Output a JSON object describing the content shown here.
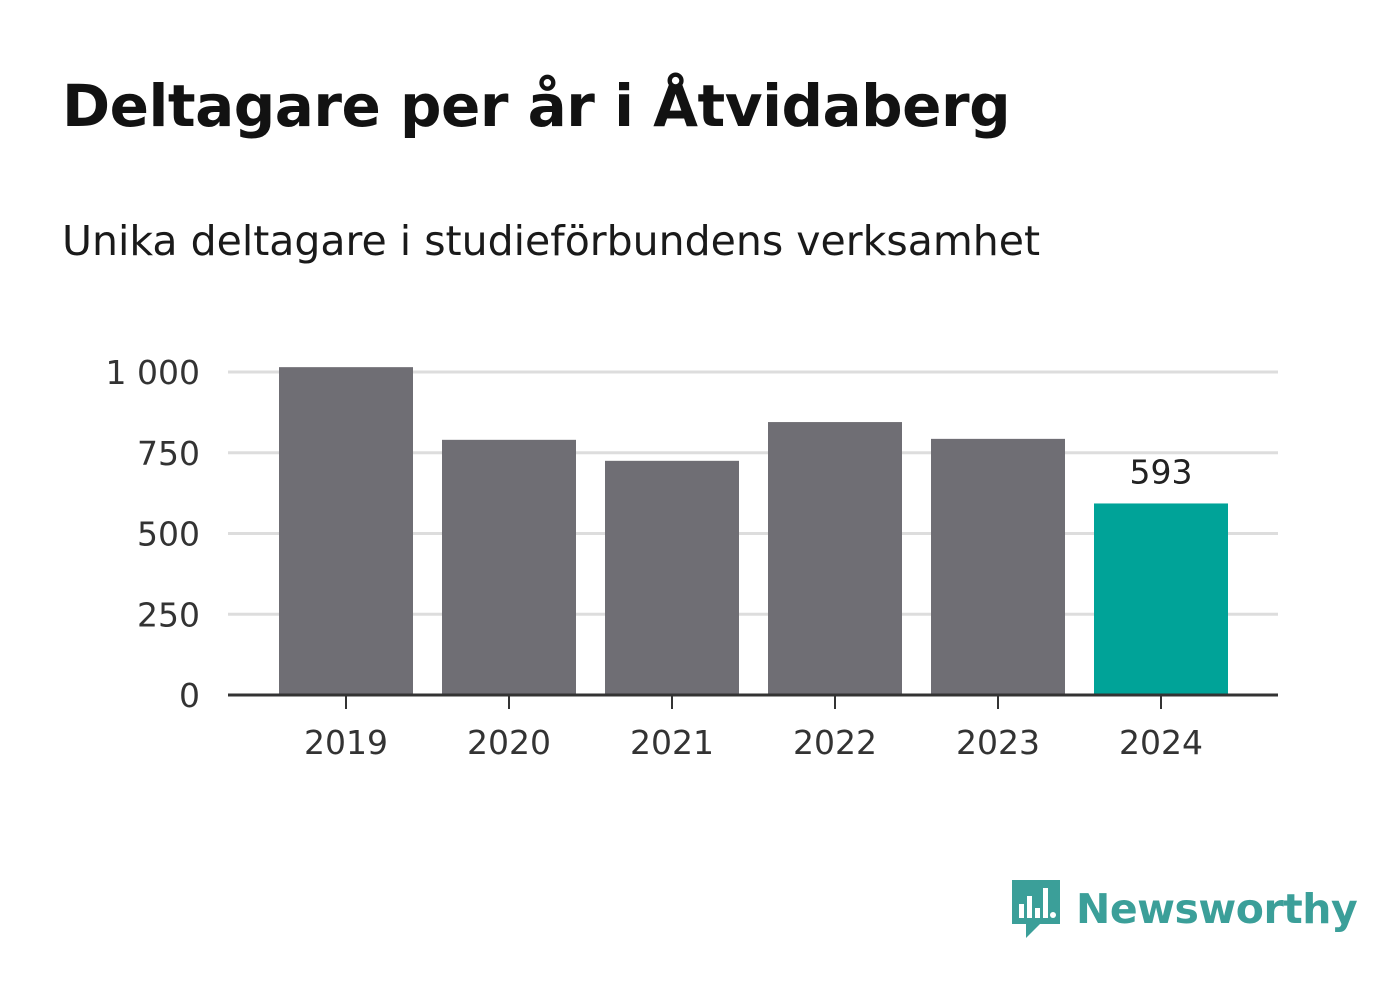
{
  "header": {
    "title": "Deltagare per år i Åtvidaberg",
    "subtitle": "Unika deltagare i studieförbundens verksamhet"
  },
  "brand": {
    "name": "Newsworthy",
    "color": "#3b9f99",
    "icon": "chart-speech-bubble-icon"
  },
  "chart_data": {
    "type": "bar",
    "categories": [
      "2019",
      "2020",
      "2021",
      "2022",
      "2023",
      "2024"
    ],
    "values": [
      1015,
      790,
      725,
      845,
      793,
      593
    ],
    "ylim": [
      0,
      1000
    ],
    "yticks": [
      0,
      250,
      500,
      750,
      1000
    ],
    "ytick_labels": [
      "0",
      "250",
      "500",
      "750",
      "1 000"
    ],
    "highlight_index": 5,
    "highlight_label": "593",
    "colors": {
      "bar": "#6f6e74",
      "highlight": "#00a398",
      "grid": "#dddddd",
      "axis": "#333333"
    },
    "grid": true
  }
}
